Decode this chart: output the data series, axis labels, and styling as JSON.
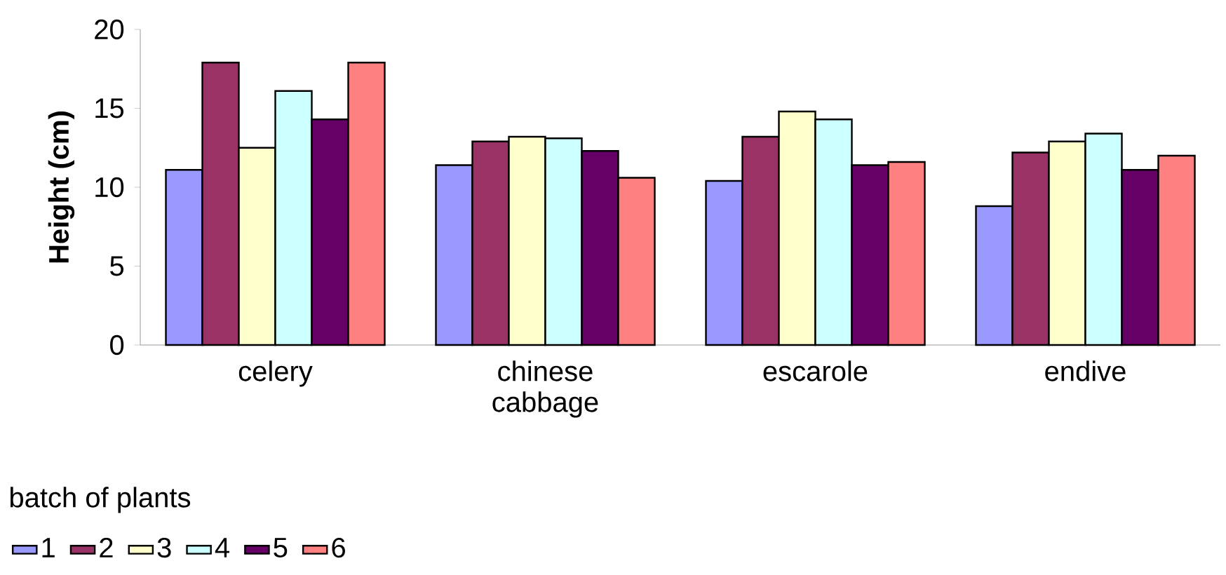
{
  "chart_data": {
    "type": "bar",
    "ylabel": "Height (cm)",
    "legend_title": "batch of plants",
    "legend": "bottom left",
    "categories": [
      "celery",
      "chinese cabbage",
      "escarole",
      "endive"
    ],
    "ylim": [
      0,
      20
    ],
    "yticks": [
      0,
      5,
      10,
      15,
      20
    ],
    "series": [
      {
        "name": "1",
        "color": "#9999ff",
        "values": [
          11.1,
          11.4,
          10.4,
          8.8
        ]
      },
      {
        "name": "2",
        "color": "#993366",
        "values": [
          17.9,
          12.9,
          13.2,
          12.2
        ]
      },
      {
        "name": "3",
        "color": "#ffffcc",
        "values": [
          12.5,
          13.2,
          14.8,
          12.9
        ]
      },
      {
        "name": "4",
        "color": "#ccffff",
        "values": [
          16.1,
          13.1,
          14.3,
          13.4
        ]
      },
      {
        "name": "5",
        "color": "#660066",
        "values": [
          14.3,
          12.3,
          11.4,
          11.1
        ]
      },
      {
        "name": "6",
        "color": "#ff8080",
        "values": [
          17.9,
          10.6,
          11.6,
          12.0
        ]
      }
    ]
  }
}
